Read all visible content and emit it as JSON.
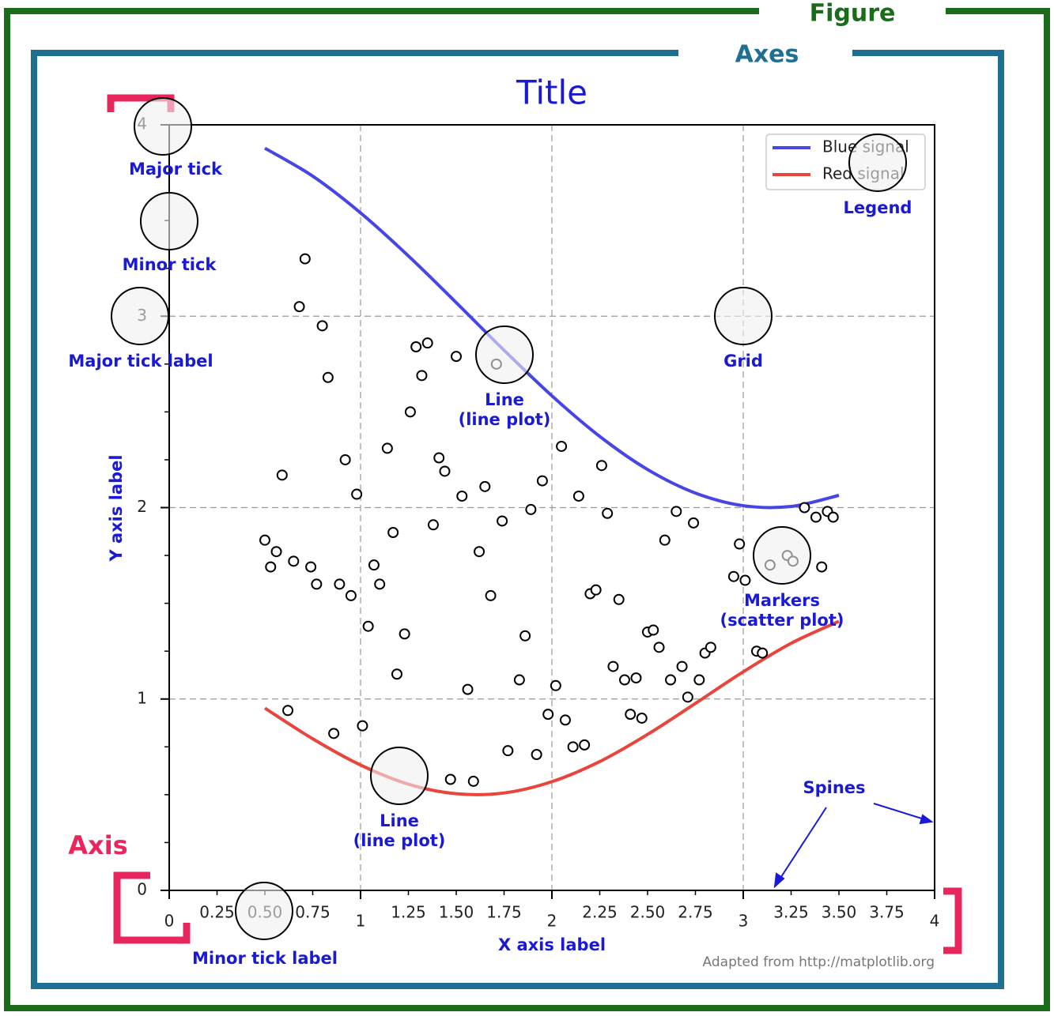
{
  "figure_label": "Figure",
  "axes_label": "Axes",
  "axis_label": "Axis",
  "annotations": {
    "major_tick": "Major tick",
    "minor_tick": "Minor tick",
    "major_tick_label": "Major tick label",
    "grid": "Grid",
    "line_top": [
      "Line",
      "(line plot)"
    ],
    "markers": [
      "Markers",
      "(scatter plot)"
    ],
    "line_bottom": [
      "Line",
      "(line plot)"
    ],
    "legend": "Legend",
    "spines": "Spines",
    "minor_tick_label": "Minor tick label"
  },
  "credit": "Adapted from http://matplotlib.org",
  "chart_data": {
    "type": "line",
    "title": "Title",
    "xlabel": "X axis label",
    "ylabel": "Y axis label",
    "xlim": [
      0,
      4
    ],
    "ylim": [
      0,
      4
    ],
    "xticks": [
      0,
      1,
      2,
      3,
      4
    ],
    "yticks": [
      0,
      1,
      2,
      3,
      4
    ],
    "xminorticks": [
      0.25,
      {
        "value": 0.5,
        "label": "0.50"
      },
      0.75,
      1.25,
      {
        "value": 1.5,
        "label": "1.50"
      },
      1.75,
      2.25,
      {
        "value": 2.5,
        "label": "2.50"
      },
      2.75,
      3.25,
      {
        "value": 3.5,
        "label": "3.50"
      },
      3.75
    ],
    "yminorticks": [
      0.25,
      0.5,
      0.75,
      1.25,
      1.5,
      1.75,
      2.25,
      2.5,
      2.75,
      3.25,
      3.5,
      3.75
    ],
    "grid": true,
    "legend": "upper right",
    "x": [
      0.5,
      0.75,
      1.0,
      1.25,
      1.5,
      1.75,
      2.0,
      2.25,
      2.5,
      2.75,
      3.0,
      3.25,
      3.5
    ],
    "series": [
      {
        "name": "Blue signal",
        "color": "#4646e6",
        "values": [
          3.878,
          3.732,
          3.54,
          3.315,
          3.071,
          2.822,
          2.584,
          2.372,
          2.199,
          2.076,
          2.01,
          2.006,
          2.064
        ]
      },
      {
        "name": "Red signal",
        "color": "#e8453c",
        "values": [
          0.952,
          0.792,
          0.655,
          0.555,
          0.505,
          0.509,
          0.568,
          0.673,
          0.815,
          0.977,
          1.142,
          1.291,
          1.406
        ]
      }
    ],
    "scatter": {
      "x": [
        0.71,
        0.68,
        0.8,
        0.83,
        0.59,
        0.5,
        0.56,
        0.53,
        0.65,
        0.74,
        0.77,
        0.89,
        0.95,
        0.92,
        0.98,
        0.62,
        0.86,
        1.01,
        1.04,
        1.07,
        1.1,
        1.17,
        1.14,
        1.23,
        1.19,
        1.26,
        1.29,
        1.35,
        1.32,
        1.41,
        1.44,
        1.38,
        1.5,
        1.53,
        1.71,
        1.65,
        1.62,
        1.74,
        1.68,
        1.56,
        1.47,
        1.59,
        1.77,
        1.92,
        1.83,
        1.86,
        1.89,
        1.95,
        2.05,
        2.14,
        1.98,
        2.02,
        2.07,
        2.11,
        2.17,
        2.2,
        2.23,
        2.26,
        2.29,
        2.35,
        2.32,
        2.38,
        2.44,
        2.41,
        2.47,
        2.5,
        2.53,
        2.56,
        2.59,
        2.65,
        2.62,
        2.68,
        2.71,
        2.74,
        2.77,
        2.8,
        2.83,
        2.95,
        3.01,
        2.98,
        3.07,
        3.1,
        3.14,
        3.23,
        3.26,
        3.32,
        3.38,
        3.44,
        3.47,
        3.41
      ],
      "y": [
        3.3,
        3.05,
        2.95,
        2.68,
        2.17,
        1.83,
        1.77,
        1.69,
        1.72,
        1.69,
        1.6,
        1.6,
        1.54,
        2.25,
        2.07,
        0.94,
        0.82,
        0.86,
        1.38,
        1.7,
        1.6,
        1.87,
        2.31,
        1.34,
        1.13,
        2.5,
        2.84,
        2.86,
        2.69,
        2.26,
        2.19,
        1.91,
        2.79,
        2.06,
        2.75,
        2.11,
        1.77,
        1.93,
        1.54,
        1.05,
        0.58,
        0.57,
        0.73,
        0.71,
        1.1,
        1.33,
        1.99,
        2.14,
        2.32,
        2.06,
        0.92,
        1.07,
        0.89,
        0.75,
        0.76,
        1.55,
        1.57,
        2.22,
        1.97,
        1.52,
        1.17,
        1.1,
        1.11,
        0.92,
        0.9,
        1.35,
        1.36,
        1.27,
        1.83,
        1.98,
        1.1,
        1.17,
        1.01,
        1.92,
        1.1,
        1.24,
        1.27,
        1.64,
        1.62,
        1.81,
        1.25,
        1.24,
        1.7,
        1.75,
        1.72,
        2.0,
        1.95,
        1.98,
        1.95,
        1.69
      ]
    }
  }
}
